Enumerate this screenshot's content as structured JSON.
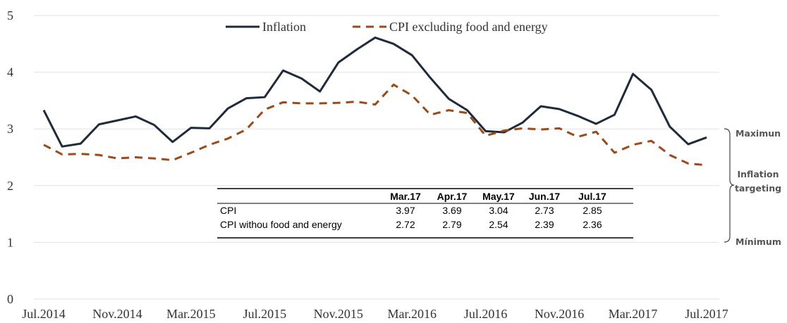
{
  "chart_data": {
    "type": "line",
    "categories": [
      "Jul.2014",
      null,
      null,
      null,
      "Nov.2014",
      null,
      null,
      null,
      "Mar.2015",
      null,
      null,
      null,
      "Jul.2015",
      null,
      null,
      null,
      "Nov.2015",
      null,
      null,
      null,
      "Mar.2016",
      null,
      null,
      null,
      "Jul.2016",
      null,
      null,
      null,
      "Nov.2016",
      null,
      null,
      null,
      "Mar.2017",
      null,
      null,
      null,
      "Jul.2017"
    ],
    "series": [
      {
        "name": "Inflation",
        "color": "#1f2a3c",
        "dash": false,
        "values": [
          3.33,
          2.69,
          2.74,
          3.08,
          3.15,
          3.22,
          3.07,
          2.77,
          3.02,
          3.01,
          3.36,
          3.54,
          3.56,
          4.03,
          3.89,
          3.66,
          4.17,
          4.4,
          4.61,
          4.5,
          4.3,
          3.9,
          3.53,
          3.33,
          2.96,
          2.94,
          3.11,
          3.4,
          3.35,
          3.23,
          3.09,
          3.25,
          3.97,
          3.69,
          3.04,
          2.73,
          2.85
        ]
      },
      {
        "name": "CPI excluding food and energy",
        "color": "#9c4a1a",
        "dash": true,
        "values": [
          2.72,
          2.55,
          2.56,
          2.54,
          2.48,
          2.5,
          2.48,
          2.45,
          2.58,
          2.72,
          2.83,
          2.99,
          3.34,
          3.47,
          3.45,
          3.45,
          3.46,
          3.48,
          3.43,
          3.78,
          3.59,
          3.25,
          3.33,
          3.28,
          2.88,
          2.97,
          3.01,
          2.99,
          3.01,
          2.86,
          2.95,
          2.58,
          2.72,
          2.79,
          2.54,
          2.39,
          2.36
        ]
      }
    ],
    "ylim": [
      0,
      5
    ],
    "yticks": [
      0,
      1,
      2,
      3,
      4,
      5
    ],
    "grid": true,
    "legend": "top",
    "table": {
      "columns": [
        "Mar.17",
        "Apr.17",
        "May.17",
        "Jun.17",
        "Jul.17"
      ],
      "rows": [
        {
          "label": "CPI",
          "values": [
            3.97,
            3.69,
            3.04,
            2.73,
            2.85
          ]
        },
        {
          "label": "CPI withou food and energy",
          "values": [
            2.72,
            2.79,
            2.54,
            2.39,
            2.36
          ]
        }
      ]
    },
    "annotations": {
      "max": "Maximun",
      "target": "Inflation targeting",
      "min": "Mínimum"
    }
  }
}
